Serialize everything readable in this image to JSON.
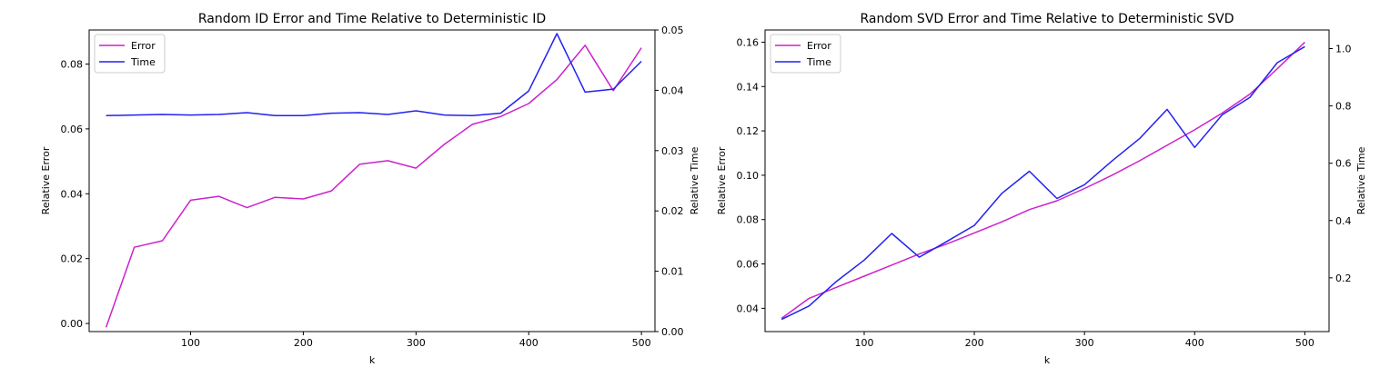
{
  "chart_data": [
    {
      "type": "line",
      "title": "Random ID Error and Time Relative to Deterministic ID",
      "xlabel": "k",
      "ylabel": "Relative Error",
      "y2label": "Relative Time",
      "xlim": [
        10,
        512
      ],
      "ylim": [
        -0.0025,
        0.0905
      ],
      "y2lim": [
        0.0,
        0.05
      ],
      "x_ticks": [
        100,
        200,
        300,
        400,
        500
      ],
      "y_ticks": [
        0.0,
        0.02,
        0.04,
        0.06,
        0.08
      ],
      "y_tick_labels": [
        "0.00",
        "0.02",
        "0.04",
        "0.06",
        "0.08"
      ],
      "y2_ticks": [
        0.0,
        0.01,
        0.02,
        0.03,
        0.04,
        0.05
      ],
      "y2_tick_labels": [
        "0.00",
        "0.01",
        "0.02",
        "0.03",
        "0.04",
        "0.05"
      ],
      "legend_position": "top-left",
      "x": [
        25,
        50,
        75,
        100,
        125,
        150,
        175,
        200,
        225,
        250,
        275,
        300,
        325,
        350,
        375,
        400,
        425,
        450,
        475,
        500
      ],
      "series": [
        {
          "name": "Error",
          "axis": "left",
          "color": "#cc22cc",
          "values": [
            -0.0012,
            0.0235,
            0.0255,
            0.038,
            0.0392,
            0.0357,
            0.0389,
            0.0384,
            0.0409,
            0.0491,
            0.0502,
            0.0479,
            0.0552,
            0.0614,
            0.0638,
            0.0678,
            0.0752,
            0.0858,
            0.0718,
            0.085
          ]
        },
        {
          "name": "Time",
          "axis": "right",
          "color": "#2222ee",
          "values": [
            0.0358,
            0.0359,
            0.036,
            0.0359,
            0.036,
            0.0363,
            0.0358,
            0.0358,
            0.0362,
            0.0363,
            0.036,
            0.0366,
            0.0359,
            0.0358,
            0.0362,
            0.0399,
            0.0494,
            0.0397,
            0.0402,
            0.0448
          ]
        }
      ]
    },
    {
      "type": "line",
      "title": "Random SVD Error and Time Relative to Deterministic SVD",
      "xlabel": "k",
      "ylabel": "Relative Error",
      "y2label": "Relative Time",
      "xlim": [
        10,
        522
      ],
      "ylim": [
        0.0295,
        0.1655
      ],
      "y2lim": [
        0.0125,
        1.065
      ],
      "x_ticks": [
        100,
        200,
        300,
        400,
        500
      ],
      "y_ticks": [
        0.04,
        0.06,
        0.08,
        0.1,
        0.12,
        0.14,
        0.16
      ],
      "y_tick_labels": [
        "0.04",
        "0.06",
        "0.08",
        "0.10",
        "0.12",
        "0.14",
        "0.16"
      ],
      "y2_ticks": [
        0.2,
        0.4,
        0.6,
        0.8,
        1.0
      ],
      "y2_tick_labels": [
        "0.2",
        "0.4",
        "0.6",
        "0.8",
        "1.0"
      ],
      "legend_position": "top-left",
      "x": [
        25,
        50,
        75,
        100,
        125,
        150,
        175,
        200,
        225,
        250,
        275,
        300,
        325,
        350,
        375,
        400,
        425,
        450,
        475,
        500
      ],
      "series": [
        {
          "name": "Error",
          "axis": "left",
          "color": "#cc22cc",
          "values": [
            0.0355,
            0.0445,
            0.0495,
            0.0545,
            0.0595,
            0.0645,
            0.069,
            0.074,
            0.079,
            0.0845,
            0.0885,
            0.094,
            0.1,
            0.1065,
            0.1135,
            0.1205,
            0.128,
            0.1365,
            0.148,
            0.16
          ]
        },
        {
          "name": "Time",
          "axis": "right",
          "color": "#2222ee",
          "values": [
            0.055,
            0.102,
            0.188,
            0.262,
            0.355,
            0.272,
            0.327,
            0.383,
            0.495,
            0.572,
            0.477,
            0.525,
            0.608,
            0.686,
            0.788,
            0.655,
            0.769,
            0.829,
            0.951,
            1.007
          ]
        }
      ]
    }
  ]
}
